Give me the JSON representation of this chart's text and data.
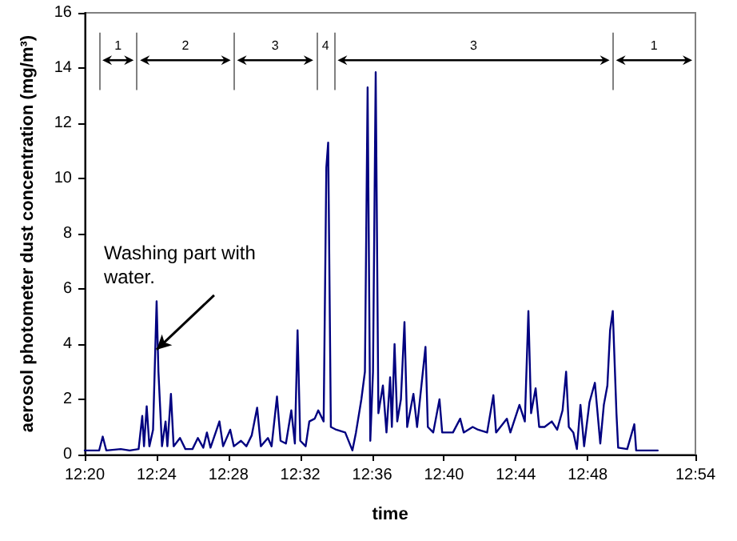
{
  "chart_data": {
    "type": "line",
    "xlabel": "time",
    "ylabel": "aerosol photometer dust concentration (mg/m³)",
    "x": [
      12.3333,
      12.3467,
      12.35,
      12.3533,
      12.3667,
      12.375,
      12.3833,
      12.3867,
      12.3883,
      12.3908,
      12.3933,
      12.3967,
      12.4,
      12.4017,
      12.405,
      12.4083,
      12.41,
      12.4133,
      12.4158,
      12.4217,
      12.4267,
      12.4333,
      12.4383,
      12.4433,
      12.4467,
      12.45,
      12.4583,
      12.4617,
      12.4683,
      12.4717,
      12.4783,
      12.4833,
      12.4883,
      12.4933,
      12.4967,
      12.5033,
      12.5067,
      12.5117,
      12.515,
      12.52,
      12.525,
      12.5283,
      12.5308,
      12.5333,
      12.5383,
      12.5417,
      12.5467,
      12.55,
      12.555,
      12.5575,
      12.5592,
      12.5617,
      12.5667,
      12.575,
      12.5817,
      12.585,
      12.59,
      12.5933,
      12.5958,
      12.5983,
      12.6008,
      12.6033,
      12.6058,
      12.61,
      12.6133,
      12.6167,
      12.6183,
      12.6208,
      12.6233,
      12.6267,
      12.63,
      12.6325,
      12.6383,
      12.6417,
      12.6495,
      12.6517,
      12.6567,
      12.6625,
      12.665,
      12.675,
      12.6817,
      12.685,
      12.6933,
      12.6983,
      12.7067,
      12.7125,
      12.715,
      12.725,
      12.7283,
      12.7367,
      12.7417,
      12.745,
      12.7475,
      12.7517,
      12.755,
      12.76,
      12.7667,
      12.7717,
      12.7767,
      12.78,
      12.7825,
      12.7867,
      12.79,
      12.7933,
      12.7967,
      12.8017,
      12.8067,
      12.8117,
      12.815,
      12.8183,
      12.8208,
      12.8233,
      12.8267,
      12.8283,
      12.8367,
      12.8433,
      12.845,
      12.865
    ],
    "series": [
      {
        "color": "#000080",
        "values": [
          0.15,
          0.15,
          0.65,
          0.15,
          0.2,
          0.15,
          0.2,
          1.4,
          0.3,
          1.75,
          0.3,
          0.9,
          5.55,
          3.0,
          0.3,
          1.2,
          0.3,
          2.2,
          0.3,
          0.6,
          0.2,
          0.2,
          0.6,
          0.25,
          0.8,
          0.25,
          1.2,
          0.3,
          0.9,
          0.3,
          0.5,
          0.3,
          0.7,
          1.7,
          0.3,
          0.6,
          0.3,
          2.1,
          0.5,
          0.4,
          1.6,
          0.4,
          4.5,
          0.5,
          0.3,
          1.2,
          1.3,
          1.6,
          1.2,
          10.4,
          11.3,
          1.0,
          0.9,
          0.8,
          0.15,
          0.8,
          2.0,
          3.0,
          13.3,
          0.5,
          3.0,
          13.85,
          1.5,
          2.5,
          0.8,
          2.8,
          1.0,
          4.0,
          1.2,
          2.0,
          4.8,
          1.0,
          2.2,
          1.0,
          3.9,
          1.0,
          0.8,
          2.0,
          0.8,
          0.8,
          1.3,
          0.8,
          1.0,
          0.9,
          0.8,
          2.15,
          0.8,
          1.3,
          0.8,
          1.8,
          1.2,
          5.2,
          1.5,
          2.4,
          1.0,
          1.0,
          1.2,
          0.9,
          1.6,
          3.0,
          1.0,
          0.8,
          0.2,
          1.8,
          0.3,
          1.9,
          2.6,
          0.4,
          1.8,
          2.5,
          4.5,
          5.2,
          1.5,
          0.25,
          0.2,
          1.1,
          0.15,
          0.15
        ]
      }
    ],
    "xlim": [
      12.3333,
      12.9
    ],
    "xticks": [
      {
        "value": 12.3333,
        "label": "12:20"
      },
      {
        "value": 12.4,
        "label": "12:24"
      },
      {
        "value": 12.4667,
        "label": "12:28"
      },
      {
        "value": 12.5333,
        "label": "12:32"
      },
      {
        "value": 12.6,
        "label": "12:36"
      },
      {
        "value": 12.6667,
        "label": "12:40"
      },
      {
        "value": 12.7333,
        "label": "12:44"
      },
      {
        "value": 12.8,
        "label": "12:48"
      },
      {
        "value": 12.9,
        "label": "12:54"
      }
    ],
    "ylim": [
      0,
      16
    ],
    "yticks": [
      0,
      2,
      4,
      6,
      8,
      10,
      12,
      14,
      16
    ],
    "ref_lines": [
      {
        "axis": "x",
        "value": 12.3467,
        "color": "#808080"
      },
      {
        "axis": "x",
        "value": 12.3817,
        "color": "#808080"
      },
      {
        "axis": "x",
        "value": 12.4717,
        "color": "#808080"
      },
      {
        "axis": "x",
        "value": 12.5483,
        "color": "#808080"
      },
      {
        "axis": "x",
        "value": 12.565,
        "color": "#808080"
      },
      {
        "axis": "x",
        "value": 12.8233,
        "color": "#808080"
      }
    ],
    "annotations": [
      {
        "text": "Washing part with water.",
        "x": 12.4,
        "y": 3.8
      },
      "1",
      "2",
      "3",
      "4",
      "3",
      "1"
    ],
    "grid": false,
    "marker": "none",
    "line_style": "solid"
  }
}
